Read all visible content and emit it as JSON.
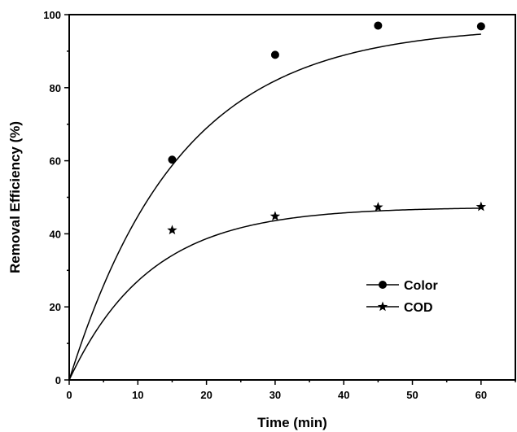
{
  "chart_data": {
    "type": "scatter",
    "title": "",
    "xlabel": "Time (min)",
    "ylabel": "Removal Efficiency (%)",
    "xlim": [
      0,
      65
    ],
    "ylim": [
      0,
      100
    ],
    "xticks": [
      0,
      10,
      20,
      30,
      40,
      50,
      60
    ],
    "yticks": [
      0,
      20,
      40,
      60,
      80,
      100
    ],
    "grid": false,
    "legend_position": "right-center",
    "series": [
      {
        "name": "Color",
        "marker": "circle",
        "color": "#000000",
        "points": [
          [
            0,
            0
          ],
          [
            15,
            60.3
          ],
          [
            30,
            89
          ],
          [
            45,
            97
          ],
          [
            60,
            96.8
          ]
        ],
        "fit": {
          "model": "exponential-rise",
          "a": 97,
          "k": 0.062
        }
      },
      {
        "name": "COD",
        "marker": "star",
        "color": "#000000",
        "points": [
          [
            0,
            0
          ],
          [
            15,
            41
          ],
          [
            30,
            44.8
          ],
          [
            45,
            47.3
          ],
          [
            60,
            47.4
          ]
        ],
        "fit": {
          "model": "exponential-rise",
          "a": 47.3,
          "k": 0.085
        }
      }
    ]
  }
}
